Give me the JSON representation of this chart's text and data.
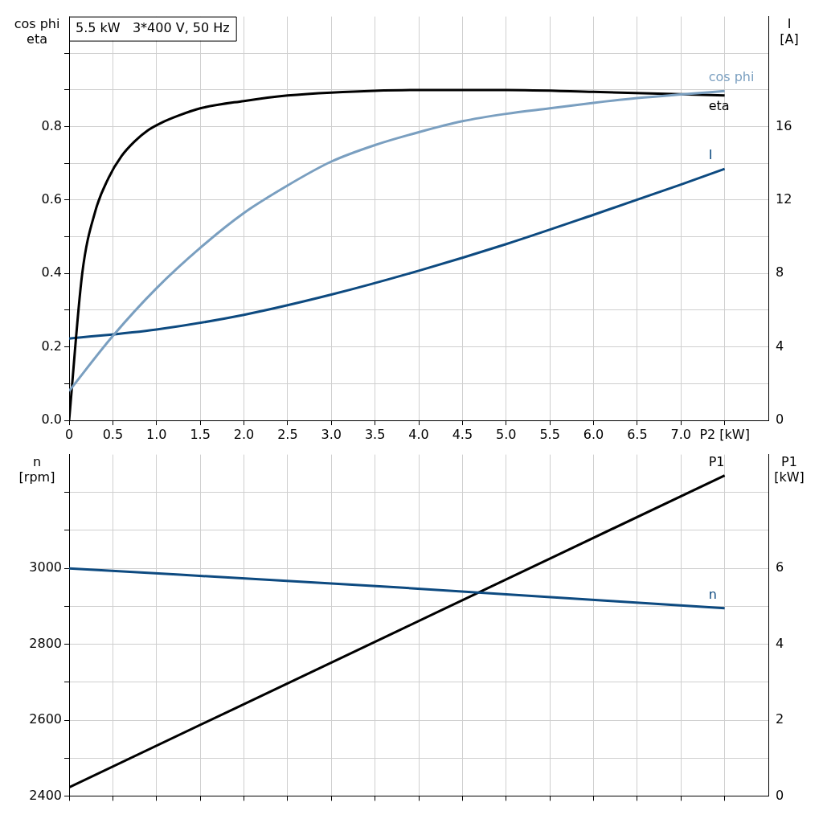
{
  "chart_data": [
    {
      "type": "line",
      "title": "5.5 kW   3*400 V, 50 Hz",
      "ylabel": "cos phi\neta",
      "y2label": "I\n[A]",
      "grid": true,
      "legend": false,
      "xlim": [
        0,
        8
      ],
      "xticks": [
        0,
        0.5,
        {
          "value": 1,
          "label": "1.0"
        },
        1.5,
        {
          "value": 2,
          "label": "2.0"
        },
        2.5,
        {
          "value": 3,
          "label": "3.0"
        },
        3.5,
        {
          "value": 4,
          "label": "4.0"
        },
        4.5,
        {
          "value": 5,
          "label": "5.0"
        },
        5.5,
        {
          "value": 6,
          "label": "6.0"
        },
        6.5,
        {
          "value": 7,
          "label": "7.0"
        },
        {
          "value": 7.5,
          "label": "P2 [kW]"
        }
      ],
      "ylim": [
        0,
        1.1
      ],
      "yticks": [
        {
          "value": 0,
          "label": "0.0"
        },
        {
          "value": 0.1,
          "label": null
        },
        0.2,
        {
          "value": 0.3,
          "label": null
        },
        0.4,
        {
          "value": 0.5,
          "label": null
        },
        0.6,
        {
          "value": 0.7,
          "label": null
        },
        0.8,
        {
          "value": 0.9,
          "label": null
        },
        {
          "value": 1,
          "label": null
        }
      ],
      "y2lim": [
        0,
        22
      ],
      "y2ticks": [
        0,
        4,
        8,
        12,
        16
      ],
      "series": [
        {
          "name": "cos phi",
          "color": "#7a9fc0",
          "x": [
            0,
            0.5,
            1,
            1.5,
            2,
            2.5,
            3,
            3.5,
            4,
            4.5,
            5,
            5.5,
            6,
            6.5,
            7,
            7.5
          ],
          "values": [
            0.08,
            0.23,
            0.36,
            0.47,
            0.565,
            0.64,
            0.705,
            0.75,
            0.785,
            0.815,
            0.835,
            0.85,
            0.865,
            0.878,
            0.888,
            0.897
          ]
        },
        {
          "name": "eta",
          "color": "#000000",
          "x": [
            0,
            0.15,
            0.3,
            0.45,
            0.6,
            0.75,
            0.9,
            1.05,
            1.25,
            1.5,
            2,
            2.5,
            3,
            4,
            5,
            6,
            7.5
          ],
          "values": [
            0,
            0.4,
            0.57,
            0.66,
            0.72,
            0.76,
            0.79,
            0.81,
            0.83,
            0.85,
            0.87,
            0.885,
            0.893,
            0.9,
            0.9,
            0.895,
            0.885
          ]
        },
        {
          "name": "I",
          "color": "#0d4a80",
          "axis": "y2",
          "x": [
            0,
            1,
            2,
            3,
            4,
            5,
            6,
            7,
            7.5
          ],
          "values": [
            4.45,
            4.95,
            5.75,
            6.85,
            8.15,
            9.6,
            11.2,
            12.85,
            13.7
          ]
        }
      ]
    },
    {
      "type": "line",
      "ylabel": "n\n[rpm]",
      "y2label": "P1\n[kW]",
      "grid": true,
      "legend": false,
      "tick_labels": "y",
      "xlim": [
        0,
        8
      ],
      "xticks": [
        0,
        0.5,
        1,
        1.5,
        2,
        2.5,
        3,
        3.5,
        4,
        4.5,
        5,
        5.5,
        6,
        6.5,
        7,
        7.5
      ],
      "ylim": [
        2400,
        3300
      ],
      "yticks": [
        2400,
        {
          "value": 2500,
          "label": null
        },
        2600,
        {
          "value": 2700,
          "label": null
        },
        2800,
        {
          "value": 2900,
          "label": null
        },
        3000,
        {
          "value": 3100,
          "label": null
        },
        {
          "value": 3200,
          "label": null
        }
      ],
      "y2lim": [
        0,
        9
      ],
      "y2ticks": [
        0,
        2,
        4,
        6
      ],
      "series": [
        {
          "name": "n",
          "color": "#0d4a80",
          "x": [
            0,
            3.75,
            7.5
          ],
          "values": [
            3000,
            2950,
            2895
          ]
        },
        {
          "name": "P1",
          "color": "#000000",
          "axis": "y2",
          "x": [
            0,
            3.75,
            7.5
          ],
          "values": [
            0.23,
            4.34,
            8.45
          ]
        }
      ]
    }
  ]
}
